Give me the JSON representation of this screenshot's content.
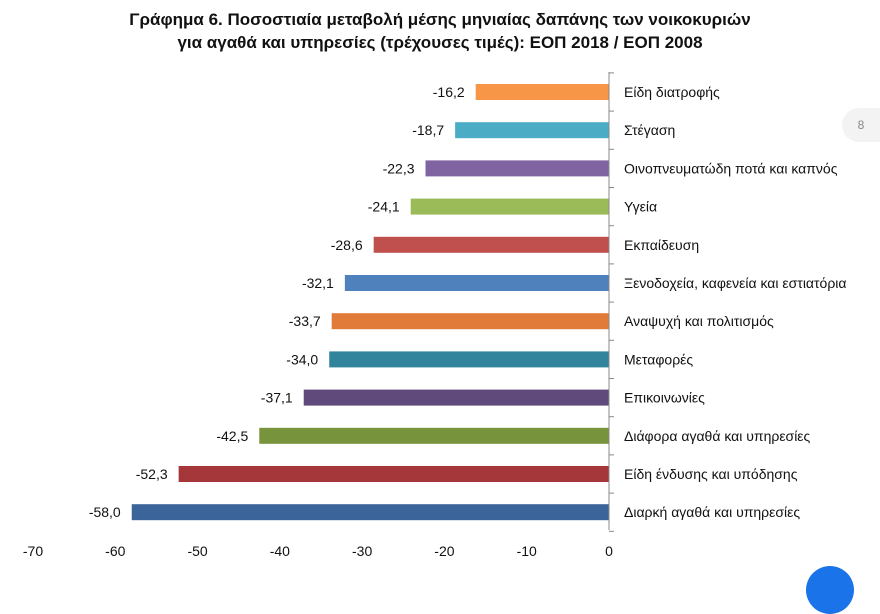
{
  "chart_data": {
    "type": "bar",
    "orientation": "horizontal",
    "title_line1": "Γράφημα 6. Ποσοστιαία μεταβολή μέσης μηνιαίας δαπάνης των νοικοκυριών",
    "title_line2": "για αγαθά και υπηρεσίες (τρέχουσες τιμές): ΕΟΠ 2018 / ΕΟΠ 2008",
    "categories": [
      "Είδη διατροφής",
      "Στέγαση",
      "Οινοπνευματώδη ποτά και καπνός",
      "Υγεία",
      "Εκπαίδευση",
      "Ξενοδοχεία, καφενεία και εστιατόρια",
      "Αναψυχή και πολιτισμός",
      "Μεταφορές",
      "Επικοινωνίες",
      "Διάφορα αγαθά και υπηρεσίες",
      "Είδη ένδυσης και υπόδησης",
      "Διαρκή αγαθά και υπηρεσίες"
    ],
    "values": [
      -16.2,
      -18.7,
      -22.3,
      -24.1,
      -28.6,
      -32.1,
      -33.7,
      -34.0,
      -37.1,
      -42.5,
      -52.3,
      -58.0
    ],
    "value_labels": [
      "-16,2",
      "-18,7",
      "-22,3",
      "-24,1",
      "-28,6",
      "-32,1",
      "-33,7",
      "-34,0",
      "-37,1",
      "-42,5",
      "-52,3",
      "-58,0"
    ],
    "colors": [
      "#f79646",
      "#4bacc6",
      "#8064a2",
      "#9bbb59",
      "#c0504d",
      "#4f81bd",
      "#e07b39",
      "#31849b",
      "#604a7b",
      "#77933c",
      "#a5373a",
      "#3b649a"
    ],
    "xlim": [
      -70,
      0
    ],
    "x_ticks": [
      "-70",
      "-60",
      "-50",
      "-40",
      "-30",
      "-20",
      "-10",
      "0"
    ],
    "grid": false
  },
  "page_badge": "8"
}
